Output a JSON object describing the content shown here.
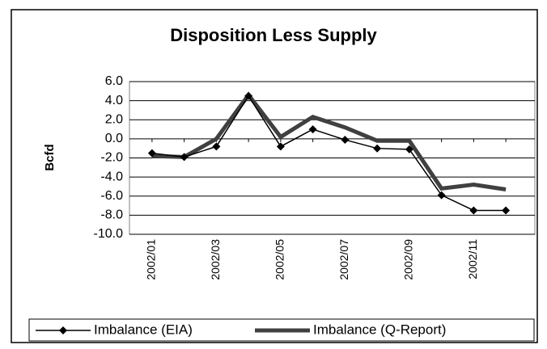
{
  "chart_data": {
    "type": "line",
    "title": "Disposition Less Supply",
    "y_label": "Bcfd",
    "categories": [
      "2002/01",
      null,
      "2002/03",
      null,
      "2002/05",
      null,
      "2002/07",
      null,
      "2002/09",
      null,
      "2002/11",
      null
    ],
    "series": [
      {
        "name": "Imbalance (EIA)",
        "color": "#000000",
        "values": [
          -1.5,
          -1.9,
          -0.8,
          4.5,
          -0.8,
          1.0,
          -0.1,
          -1.0,
          -1.1,
          -5.9,
          -7.5,
          -7.5
        ]
      },
      {
        "name": "Imbalance (Q-Report)",
        "color": "#404040",
        "values": [
          -1.8,
          -1.9,
          0.0,
          4.6,
          0.2,
          2.3,
          1.2,
          -0.2,
          -0.2,
          -5.2,
          -4.8,
          -5.3
        ]
      }
    ],
    "ylim": [
      -10,
      6
    ],
    "yticks": [
      {
        "value": -10,
        "label": "-10.0"
      },
      {
        "value": -8,
        "label": "-8.0"
      },
      {
        "value": -6,
        "label": "-6.0"
      },
      {
        "value": -4,
        "label": "-4.0"
      },
      {
        "value": -2,
        "label": "-2.0"
      },
      {
        "value": 0,
        "label": "0.0"
      },
      {
        "value": 2,
        "label": "2.0"
      },
      {
        "value": 4,
        "label": "4.0"
      },
      {
        "value": 6,
        "label": "6.0"
      }
    ],
    "grid": true,
    "legend": "bottom"
  }
}
